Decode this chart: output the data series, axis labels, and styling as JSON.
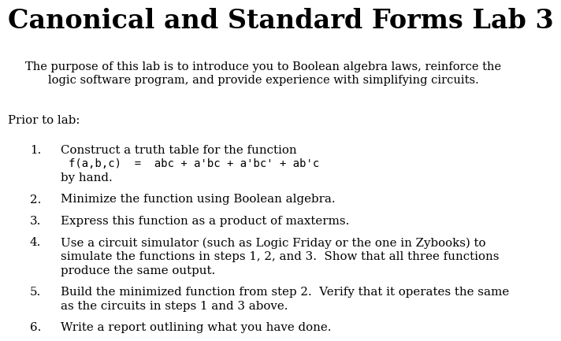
{
  "title": "Canonical and Standard Forms Lab 3",
  "subtitle_line1": "The purpose of this lab is to introduce you to Boolean algebra laws, reinforce the",
  "subtitle_line2": "logic software program, and provide experience with simplifying circuits.",
  "prior_to_lab": "Prior to lab:",
  "items": [
    {
      "num": "1.",
      "text_lines": [
        "Construct a truth table for the function",
        "f(a,b,c)  =  abc + a'bc + a'bc' + ab'c",
        "by hand."
      ],
      "monospace_line": 1
    },
    {
      "num": "2.",
      "text_lines": [
        "Minimize the function using Boolean algebra."
      ],
      "monospace_line": -1
    },
    {
      "num": "3.",
      "text_lines": [
        "Express this function as a product of maxterms."
      ],
      "monospace_line": -1
    },
    {
      "num": "4.",
      "text_lines": [
        "Use a circuit simulator (such as Logic Friday or the one in Zybooks) to",
        "simulate the functions in steps 1, 2, and 3.  Show that all three functions",
        "produce the same output."
      ],
      "monospace_line": -1
    },
    {
      "num": "5.",
      "text_lines": [
        "Build the minimized function from step 2.  Verify that it operates the same",
        "as the circuits in steps 1 and 3 above."
      ],
      "monospace_line": -1
    },
    {
      "num": "6.",
      "text_lines": [
        "Write a report outlining what you have done."
      ],
      "monospace_line": -1
    }
  ],
  "background_color": "#ffffff",
  "text_color": "#000000",
  "title_fontsize": 24,
  "subtitle_fontsize": 10.5,
  "body_fontsize": 10.8,
  "mono_fontsize": 10.0,
  "prior_fontsize": 10.8
}
